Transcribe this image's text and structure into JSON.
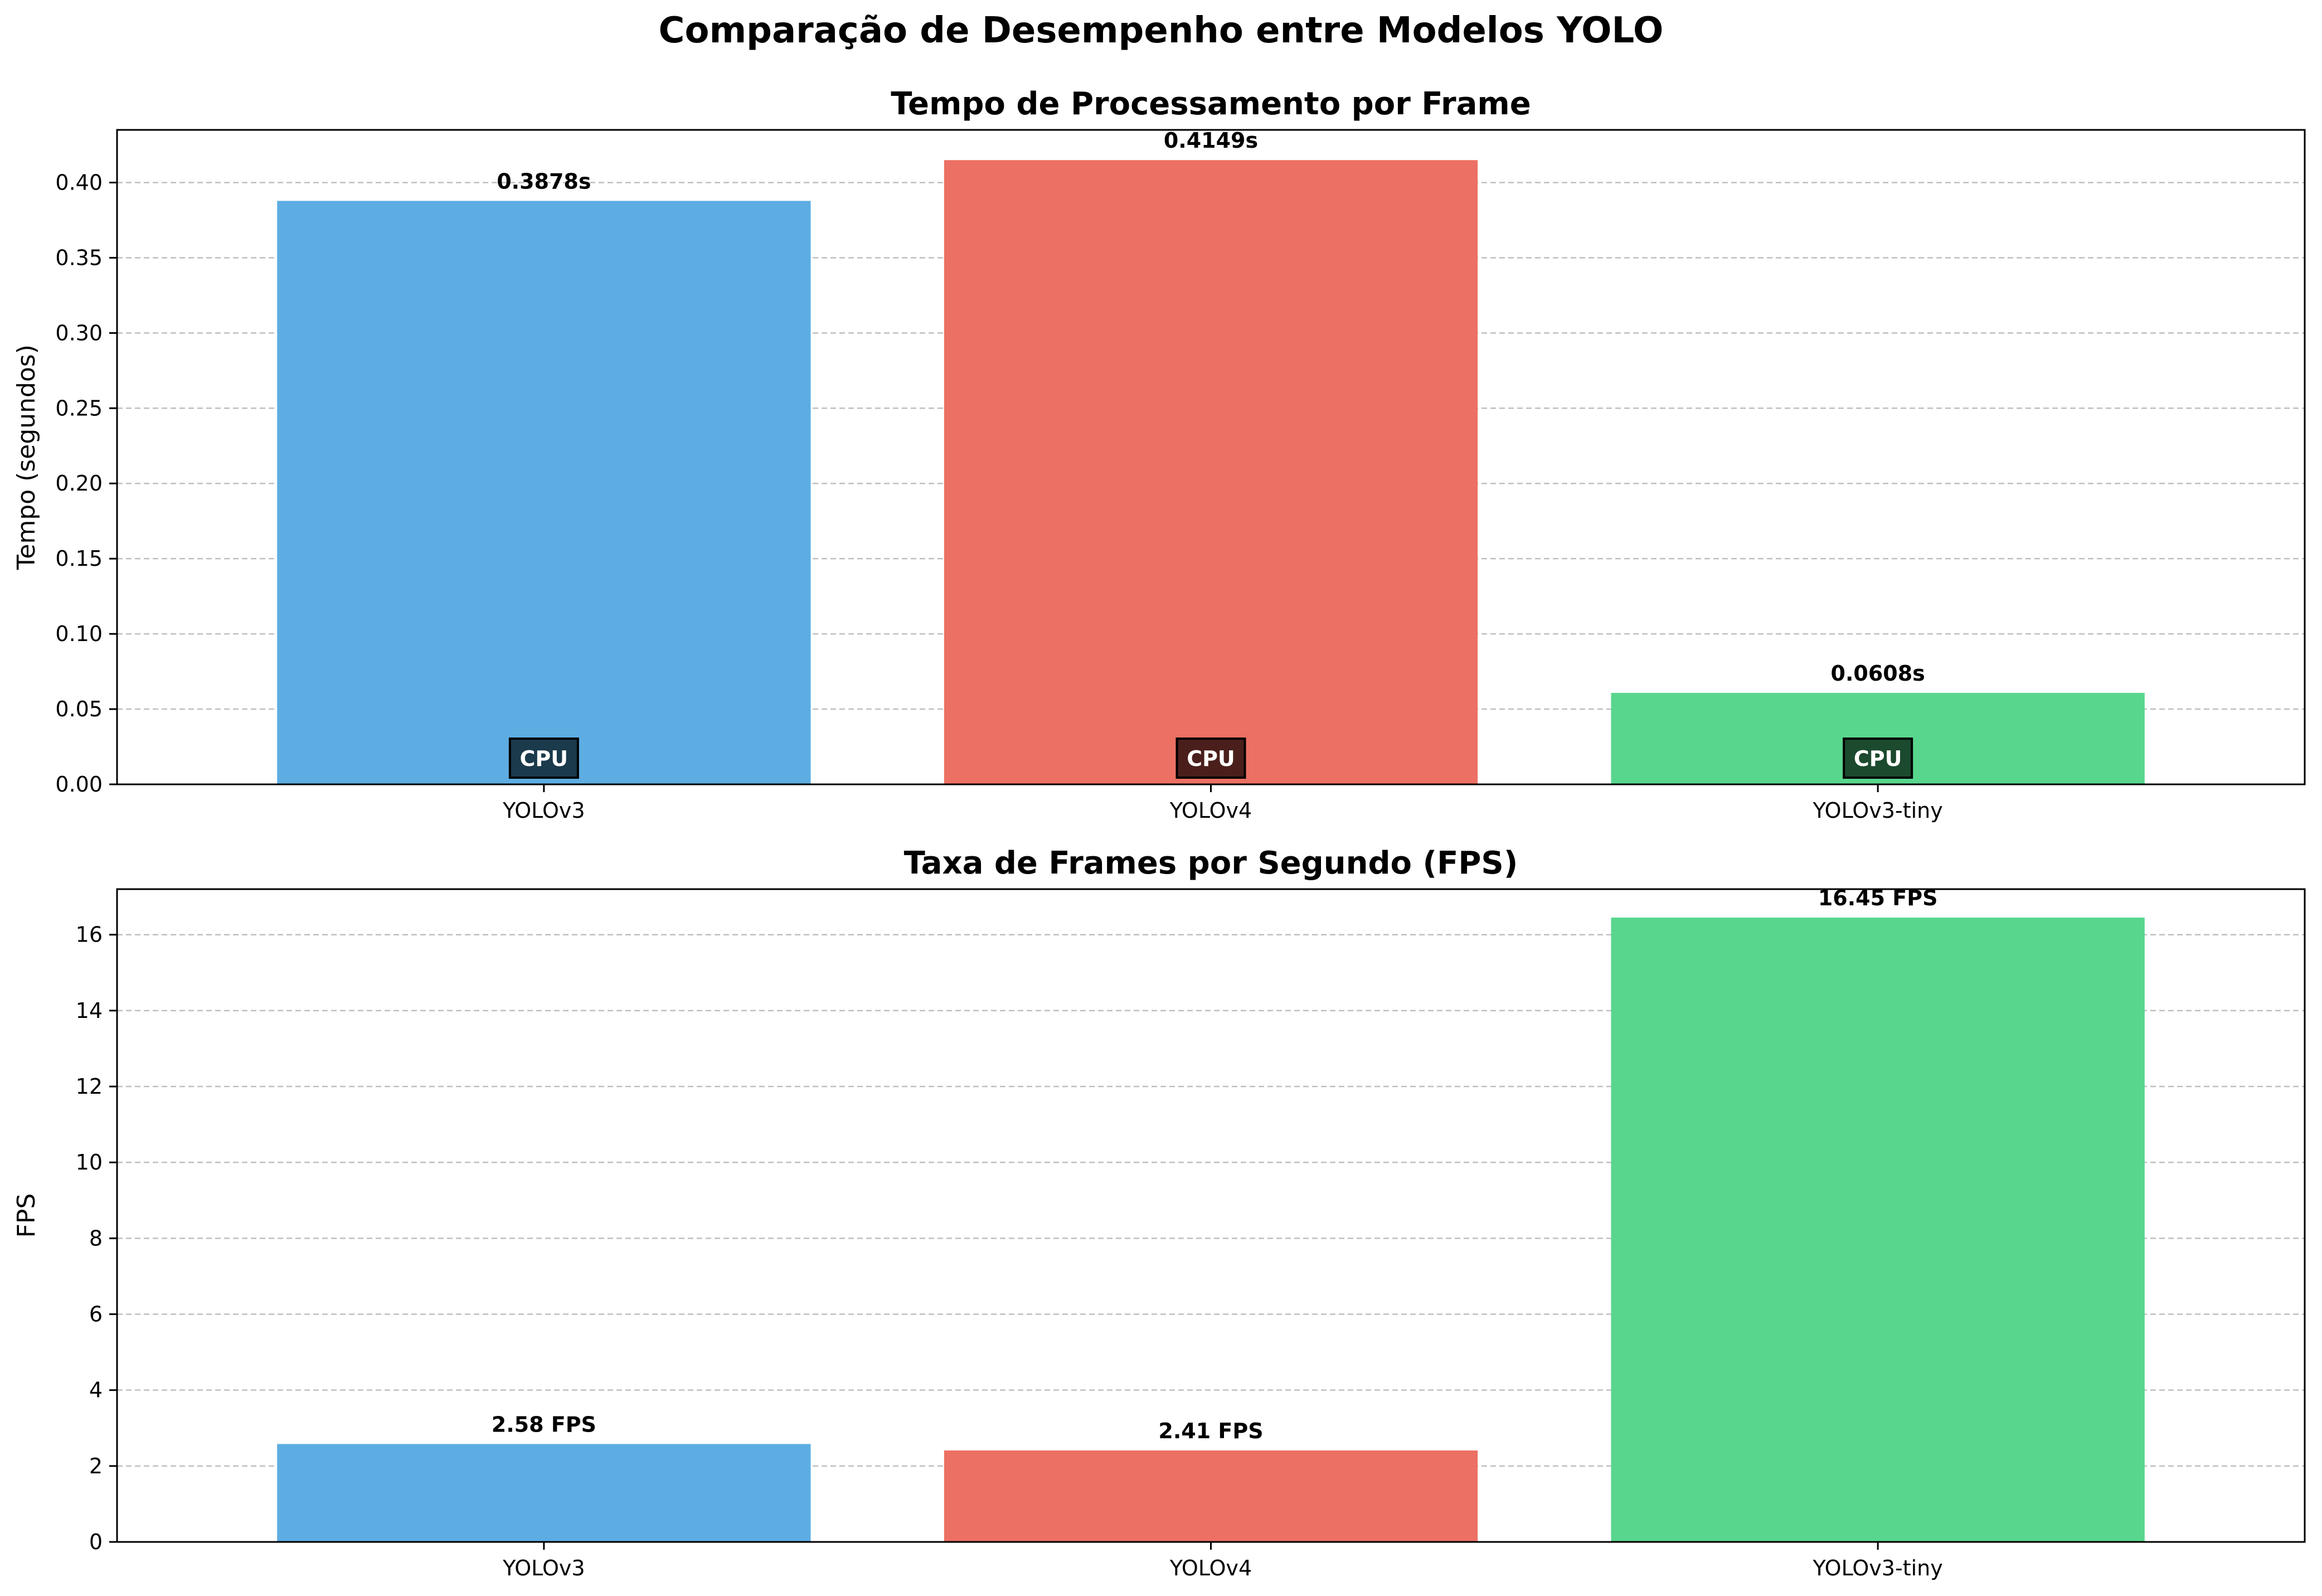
{
  "suptitle": "Comparação de Desempenho entre Modelos YOLO",
  "colors": {
    "YOLOv3": "#5dade2",
    "YOLOv4": "#ec7063",
    "YOLOv3-tiny": "#58d68d",
    "grid": "#b0b0b0"
  },
  "chart_data": [
    {
      "type": "bar",
      "title": "Tempo de Processamento por Frame",
      "ylabel": "Tempo (segundos)",
      "xlabel": "",
      "categories": [
        "YOLOv3",
        "YOLOv4",
        "YOLOv3-tiny"
      ],
      "values": [
        0.3878,
        0.4149,
        0.0608
      ],
      "value_labels": [
        "0.3878s",
        "0.4149s",
        "0.0608s"
      ],
      "badges": [
        "CPU",
        "CPU",
        "CPU"
      ],
      "badge_colors": [
        "#1b3a4b",
        "#4a1f1b",
        "#1b4a2e"
      ],
      "ylim": [
        0,
        0.435
      ],
      "yticks": [
        0.0,
        0.05,
        0.1,
        0.15,
        0.2,
        0.25,
        0.3,
        0.35,
        0.4
      ],
      "ytick_labels": [
        "0.00",
        "0.05",
        "0.10",
        "0.15",
        "0.20",
        "0.25",
        "0.30",
        "0.35",
        "0.40"
      ],
      "grid": "y-dashed"
    },
    {
      "type": "bar",
      "title": "Taxa de Frames por Segundo (FPS)",
      "ylabel": "FPS",
      "xlabel": "",
      "categories": [
        "YOLOv3",
        "YOLOv4",
        "YOLOv3-tiny"
      ],
      "values": [
        2.58,
        2.41,
        16.45
      ],
      "value_labels": [
        "2.58 FPS",
        "2.41 FPS",
        "16.45 FPS"
      ],
      "ylim": [
        0,
        17.2
      ],
      "yticks": [
        0,
        2,
        4,
        6,
        8,
        10,
        12,
        14,
        16
      ],
      "ytick_labels": [
        "0",
        "2",
        "4",
        "6",
        "8",
        "10",
        "12",
        "14",
        "16"
      ],
      "grid": "y-dashed"
    }
  ]
}
